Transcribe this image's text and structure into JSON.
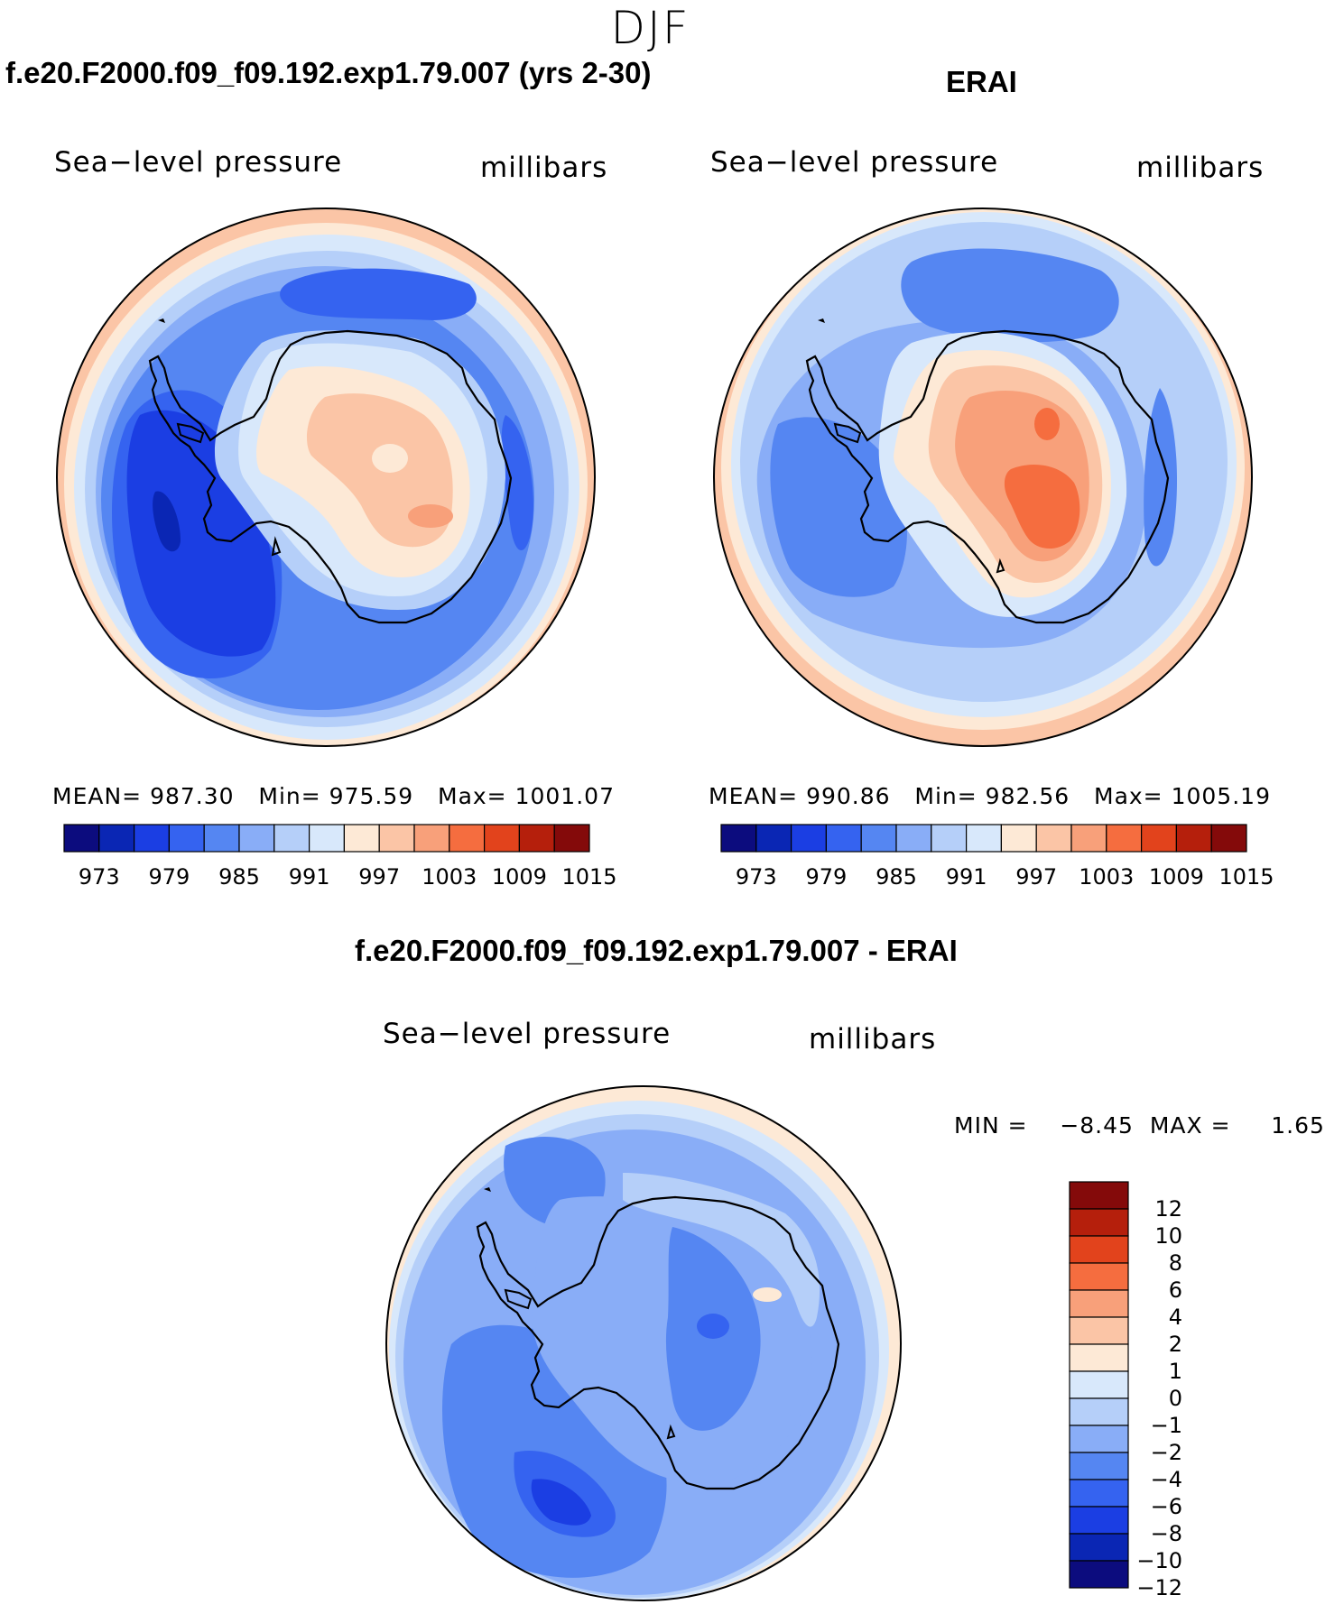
{
  "title": "DJF",
  "colors": {
    "abs_scale": [
      "#0c0c7e",
      "#0a26b4",
      "#1b3ee3",
      "#3563f0",
      "#5586f2",
      "#89adf7",
      "#b5cff9",
      "#d8e8fb",
      "#fde9d6",
      "#fbc5a6",
      "#f8a07a",
      "#f56d3f",
      "#e2431c",
      "#b51f0c",
      "#840a0a"
    ],
    "diff_scale": [
      "#0c0c7e",
      "#0a26b4",
      "#1b3ee3",
      "#3563f0",
      "#5586f2",
      "#89adf7",
      "#b5cff9",
      "#d8e8fb",
      "#fde9d6",
      "#fbc5a6",
      "#f8a07a",
      "#f56d3f",
      "#e2431c",
      "#b51f0c",
      "#840a0a"
    ]
  },
  "panels": {
    "model": {
      "title": "f.e20.F2000.f09_f09.192.exp1.79.007 (yrs 2-30)",
      "left_label": "Sea−level pressure",
      "right_label": "millibars",
      "mean_label": "MEAN=",
      "mean": "987.30",
      "min_label": "Min=",
      "min": "975.59",
      "max_label": "Max=",
      "max": "1001.07"
    },
    "obs": {
      "title": "ERAI",
      "left_label": "Sea−level pressure",
      "right_label": "millibars",
      "mean_label": "MEAN=",
      "mean": "990.86",
      "min_label": "Min=",
      "min": "982.56",
      "max_label": "Max=",
      "max": "1005.19"
    },
    "diff": {
      "title": "f.e20.F2000.f09_f09.192.exp1.79.007 - ERAI",
      "left_label": "Sea−level pressure",
      "right_label": "millibars",
      "minmax": "MIN =    −8.45  MAX =     1.65"
    }
  },
  "abs_ticks": [
    "973",
    "979",
    "985",
    "991",
    "997",
    "1003",
    "1009",
    "1015"
  ],
  "diff_ticks": [
    "12",
    "10",
    "8",
    "6",
    "4",
    "2",
    "1",
    "0",
    "−1",
    "−2",
    "−4",
    "−6",
    "−8",
    "−10",
    "−12"
  ]
}
